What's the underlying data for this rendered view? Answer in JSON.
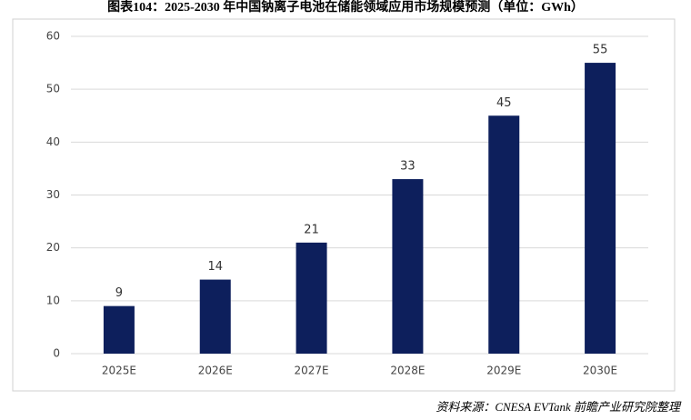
{
  "chart_data": {
    "type": "bar",
    "title": "图表104：2025-2030 年中国钠离子电池在储能领域应用市场规模预测（单位：GWh）",
    "categories": [
      "2025E",
      "2026E",
      "2027E",
      "2028E",
      "2029E",
      "2030E"
    ],
    "values": [
      9,
      14,
      21,
      33,
      45,
      55
    ],
    "color": "#0d1f5c",
    "ylim": [
      0,
      60
    ],
    "yticks": [
      0,
      10,
      20,
      30,
      40,
      50,
      60
    ],
    "grid": true,
    "source": "资料来源：CNESA EVTank 前瞻产业研究院整理"
  }
}
